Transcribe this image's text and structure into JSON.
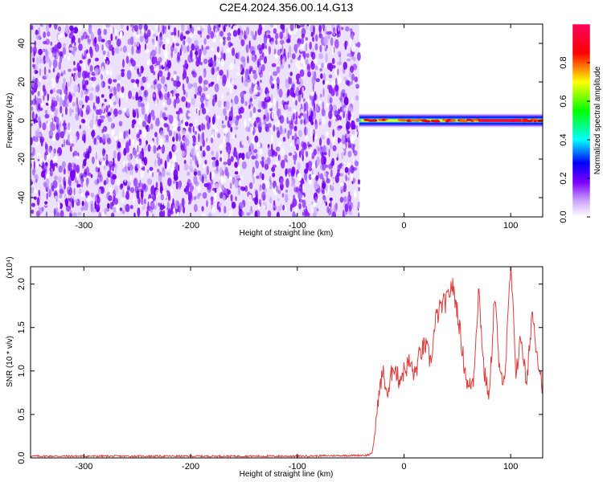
{
  "figure": {
    "title": "C2E4.2024.356.00.14.G13"
  },
  "chart_data": [
    {
      "type": "heatmap",
      "title": "C2E4.2024.356.00.14.G13",
      "xlabel": "Height of straight line (km)",
      "ylabel": "Frequency (Hz)",
      "xlim": [
        -350,
        130
      ],
      "ylim": [
        -50,
        50
      ],
      "x_ticks": [
        -300,
        -200,
        -100,
        0,
        100
      ],
      "x_tick_labels": [
        "-300",
        "-200",
        "-100",
        "0",
        "100"
      ],
      "y_ticks": [
        -40,
        -20,
        0,
        20,
        40
      ],
      "y_tick_labels": [
        "-40",
        "-20",
        "0",
        "20",
        "40"
      ],
      "colorbar": {
        "label": "Normalized spectral amplitude",
        "range": [
          0,
          1
        ],
        "ticks": [
          0.0,
          0.2,
          0.4,
          0.6,
          0.8
        ],
        "tick_labels": [
          "0.0",
          "0.2",
          "0.4",
          "0.6",
          "0.8"
        ],
        "colormap": [
          "#ffffff",
          "#7b00ff",
          "#0000ff",
          "#00ffff",
          "#00ff00",
          "#ffff00",
          "#ff0000",
          "#ff0060"
        ]
      },
      "regions": [
        {
          "x_range": [
            -350,
            -42
          ],
          "freq_range": [
            -50,
            50
          ],
          "amplitude": 0.05,
          "pattern": "noise"
        },
        {
          "x_range": [
            -42,
            130
          ],
          "freq_center": 0,
          "bandwidth": [
            -4,
            4
          ],
          "amplitude": 0.9,
          "pattern": "narrow band at 0 Hz"
        }
      ]
    },
    {
      "type": "line",
      "xlabel": "Height of straight line (km)",
      "ylabel": "SNR (10 * v/v)",
      "y_scale_label": "(x10⁴)",
      "xlim": [
        -350,
        130
      ],
      "ylim": [
        0,
        2.2
      ],
      "x_ticks": [
        -300,
        -200,
        -100,
        0,
        100
      ],
      "x_tick_labels": [
        "-300",
        "-200",
        "-100",
        "0",
        "100"
      ],
      "y_ticks": [
        0.0,
        0.5,
        1.0,
        1.5,
        2.0
      ],
      "y_tick_labels": [
        "0.0",
        "0.5",
        "1.0",
        "1.5",
        "2.0"
      ],
      "color": "#e03c3c",
      "series": [
        {
          "x": [
            -350,
            -300,
            -200,
            -100,
            -35,
            -30,
            -27,
            -25,
            -20,
            -15,
            -10,
            -5,
            0,
            5,
            10,
            15,
            20,
            25,
            28,
            30,
            35,
            40,
            45,
            50,
            55,
            60,
            65,
            70,
            75,
            80,
            85,
            90,
            95,
            100,
            105,
            110,
            115,
            120,
            125,
            130
          ],
          "y": [
            0.02,
            0.02,
            0.02,
            0.02,
            0.03,
            0.05,
            0.3,
            0.6,
            1.0,
            0.7,
            1.1,
            0.9,
            1.0,
            1.1,
            0.95,
            1.2,
            1.3,
            1.1,
            1.4,
            1.6,
            1.75,
            1.8,
            2.0,
            1.7,
            1.2,
            0.8,
            0.9,
            1.95,
            1.0,
            0.7,
            1.9,
            0.9,
            1.0,
            2.2,
            1.0,
            1.4,
            0.8,
            1.7,
            1.2,
            0.8
          ]
        }
      ]
    }
  ]
}
